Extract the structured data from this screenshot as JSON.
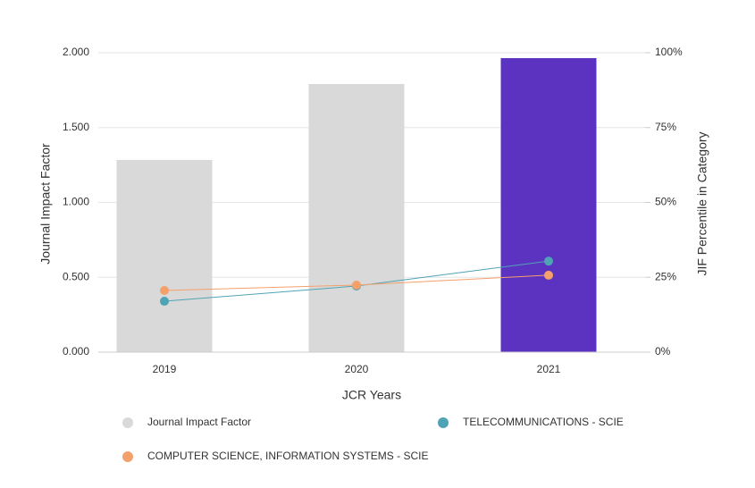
{
  "chart_data": {
    "type": "bar",
    "categories": [
      "2019",
      "2020",
      "2021"
    ],
    "x_label": "JCR Years",
    "y_label": "Journal Impact Factor",
    "y2_label": "JIF Percentile in Category",
    "ylim": [
      0,
      2
    ],
    "yticks": [
      {
        "value": 0,
        "label": "0.000"
      },
      {
        "value": 0.5,
        "label": "0.500"
      },
      {
        "value": 1,
        "label": "1.000"
      },
      {
        "value": 1.5,
        "label": "1.500"
      },
      {
        "value": 2,
        "label": "2.000"
      }
    ],
    "y2lim": [
      0,
      100
    ],
    "y2ticks": [
      {
        "value": 0,
        "label": "0%"
      },
      {
        "value": 25,
        "label": "25%"
      },
      {
        "value": 50,
        "label": "50%"
      },
      {
        "value": 75,
        "label": "75%"
      },
      {
        "value": 100,
        "label": "100%"
      }
    ],
    "grid": true,
    "series": [
      {
        "name": "Journal Impact Factor",
        "type": "bar",
        "color": "#d9d9d9",
        "colors": [
          "#d9d9d9",
          "#d9d9d9",
          "#5c33c1"
        ],
        "values": [
          1.284,
          1.791,
          1.964
        ]
      },
      {
        "name": "TELECOMMUNICATIONS - SCIE",
        "type": "line",
        "axis": "y2",
        "color": "#4ea3b5",
        "values": [
          17.0,
          22.1,
          30.4
        ]
      },
      {
        "name": "COMPUTER SCIENCE, INFORMATION SYSTEMS - SCIE",
        "type": "line",
        "axis": "y2",
        "color": "#f4a06b",
        "values": [
          20.6,
          22.4,
          25.7
        ]
      }
    ]
  }
}
